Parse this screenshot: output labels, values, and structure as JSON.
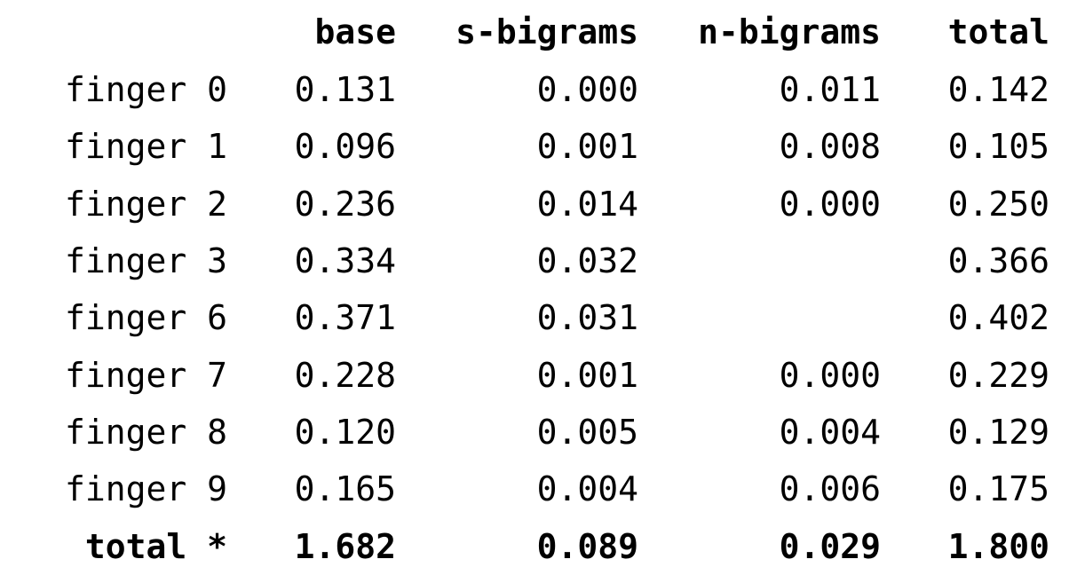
{
  "table": {
    "headers": {
      "label": "",
      "base": "base",
      "s_bigrams": "s-bigrams",
      "n_bigrams": "n-bigrams",
      "total": "total"
    },
    "rows": [
      {
        "label": "finger 0",
        "base": "0.131",
        "s_bigrams": "0.000",
        "n_bigrams": "0.011",
        "total": "0.142"
      },
      {
        "label": "finger 1",
        "base": "0.096",
        "s_bigrams": "0.001",
        "n_bigrams": "0.008",
        "total": "0.105"
      },
      {
        "label": "finger 2",
        "base": "0.236",
        "s_bigrams": "0.014",
        "n_bigrams": "0.000",
        "total": "0.250"
      },
      {
        "label": "finger 3",
        "base": "0.334",
        "s_bigrams": "0.032",
        "n_bigrams": "",
        "total": "0.366"
      },
      {
        "label": "finger 6",
        "base": "0.371",
        "s_bigrams": "0.031",
        "n_bigrams": "",
        "total": "0.402"
      },
      {
        "label": "finger 7",
        "base": "0.228",
        "s_bigrams": "0.001",
        "n_bigrams": "0.000",
        "total": "0.229"
      },
      {
        "label": "finger 8",
        "base": "0.120",
        "s_bigrams": "0.005",
        "n_bigrams": "0.004",
        "total": "0.129"
      },
      {
        "label": "finger 9",
        "base": "0.165",
        "s_bigrams": "0.004",
        "n_bigrams": "0.006",
        "total": "0.175"
      }
    ],
    "total_row": {
      "label": "total *",
      "base": "1.682",
      "s_bigrams": "0.089",
      "n_bigrams": "0.029",
      "total": "1.800"
    }
  }
}
